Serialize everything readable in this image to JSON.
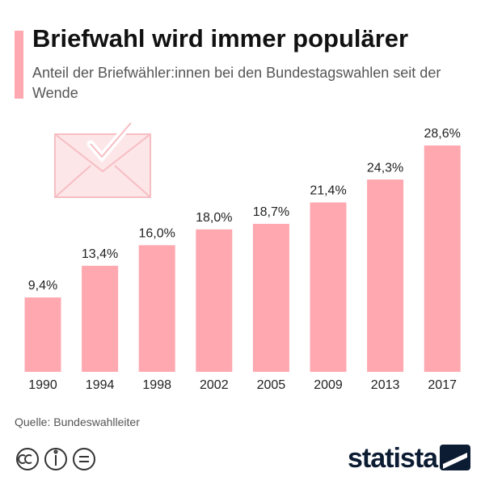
{
  "chart_data": {
    "type": "bar",
    "title": "Briefwahl wird immer populärer",
    "subtitle": "Anteil der Briefwähler:innen bei den Bundestagswahlen seit der Wende",
    "categories": [
      "1990",
      "1994",
      "1998",
      "2002",
      "2005",
      "2009",
      "2013",
      "2017"
    ],
    "values": [
      9.4,
      13.4,
      16.0,
      18.0,
      18.7,
      21.4,
      24.3,
      28.6
    ],
    "value_labels": [
      "9,4%",
      "13,4%",
      "16,0%",
      "18,0%",
      "18,7%",
      "21,4%",
      "24,3%",
      "28,6%"
    ],
    "color": "#ffa8b0",
    "source": "Quelle: Bundeswahlleiter",
    "brand": "statista"
  }
}
